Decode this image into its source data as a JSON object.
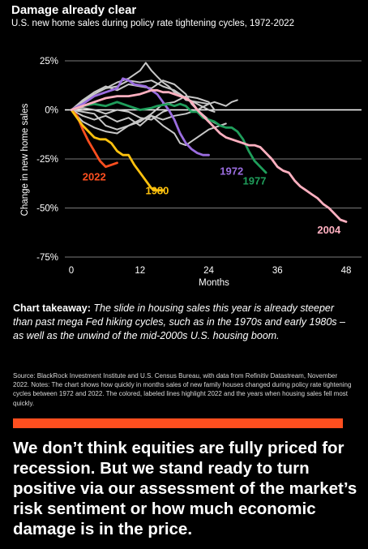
{
  "header": {
    "title": "Damage already clear",
    "subtitle": "U.S. new home sales during policy rate tightening cycles, 1972-2022"
  },
  "chart_data": {
    "type": "line",
    "title": "",
    "xlabel": "Months",
    "ylabel": "Change in new home sales",
    "xlim": [
      -2,
      50
    ],
    "ylim": [
      -75,
      30
    ],
    "x_ticks": [
      0,
      12,
      24,
      36,
      48
    ],
    "y_ticks": [
      25,
      0,
      -25,
      -50,
      -75
    ],
    "y_tick_labels": [
      "25%",
      "0%",
      "-25%",
      "-50%",
      "-75%"
    ],
    "grid": "horizontal",
    "highlighted_series": [
      {
        "name": "2022",
        "color": "#ff4f1f",
        "label_at": [
          4,
          -36
        ],
        "points": [
          [
            0,
            0
          ],
          [
            1,
            -3
          ],
          [
            2,
            -10
          ],
          [
            3,
            -16
          ],
          [
            4,
            -21
          ],
          [
            5,
            -26
          ],
          [
            6,
            -29
          ],
          [
            7,
            -28
          ],
          [
            8,
            -27
          ]
        ]
      },
      {
        "name": "1980",
        "color": "#ffc20e",
        "label_at": [
          15,
          -43
        ],
        "points": [
          [
            0,
            0
          ],
          [
            2,
            -8
          ],
          [
            3,
            -11
          ],
          [
            4,
            -14
          ],
          [
            5,
            -15
          ],
          [
            6,
            -15
          ],
          [
            7,
            -17
          ],
          [
            8,
            -21
          ],
          [
            9,
            -23
          ],
          [
            10,
            -23
          ],
          [
            11,
            -28
          ],
          [
            12,
            -32
          ],
          [
            13,
            -36
          ],
          [
            14,
            -40
          ],
          [
            15,
            -41
          ],
          [
            16,
            -41
          ]
        ]
      },
      {
        "name": "1972",
        "color": "#9b6de0",
        "label_at": [
          28,
          -33
        ],
        "points": [
          [
            0,
            0
          ],
          [
            2,
            3
          ],
          [
            4,
            7
          ],
          [
            6,
            9
          ],
          [
            8,
            11
          ],
          [
            9,
            16
          ],
          [
            10,
            15
          ],
          [
            11,
            13
          ],
          [
            13,
            12
          ],
          [
            15,
            8
          ],
          [
            16,
            4
          ],
          [
            17,
            0
          ],
          [
            18,
            -5
          ],
          [
            19,
            -12
          ],
          [
            20,
            -17
          ],
          [
            21,
            -20
          ],
          [
            22,
            -22
          ],
          [
            23,
            -23
          ],
          [
            24,
            -23
          ]
        ]
      },
      {
        "name": "1977",
        "color": "#1f9e5b",
        "label_at": [
          32,
          -38
        ],
        "points": [
          [
            0,
            0
          ],
          [
            2,
            2
          ],
          [
            4,
            3
          ],
          [
            6,
            2
          ],
          [
            8,
            4
          ],
          [
            10,
            2
          ],
          [
            12,
            0
          ],
          [
            14,
            1
          ],
          [
            15,
            2
          ],
          [
            17,
            3
          ],
          [
            18,
            2
          ],
          [
            19,
            3
          ],
          [
            20,
            2
          ],
          [
            21,
            -1
          ],
          [
            22,
            -1
          ],
          [
            23,
            -4
          ],
          [
            24,
            -5
          ],
          [
            25,
            -6
          ],
          [
            26,
            -8
          ],
          [
            27,
            -9
          ],
          [
            28,
            -9
          ],
          [
            29,
            -11
          ],
          [
            30,
            -15
          ],
          [
            31,
            -21
          ],
          [
            32,
            -26
          ],
          [
            33,
            -29
          ],
          [
            34,
            -32
          ]
        ]
      },
      {
        "name": "2004",
        "color": "#ffb0c0",
        "label_at": [
          45,
          -63
        ],
        "points": [
          [
            0,
            0
          ],
          [
            2,
            2
          ],
          [
            4,
            4
          ],
          [
            6,
            6
          ],
          [
            8,
            7
          ],
          [
            10,
            7
          ],
          [
            12,
            8
          ],
          [
            14,
            10
          ],
          [
            15,
            10
          ],
          [
            16,
            9
          ],
          [
            17,
            9
          ],
          [
            18,
            8
          ],
          [
            19,
            7
          ],
          [
            20,
            6
          ],
          [
            21,
            4
          ],
          [
            22,
            0
          ],
          [
            23,
            -3
          ],
          [
            24,
            -6
          ],
          [
            25,
            -9
          ],
          [
            26,
            -12
          ],
          [
            27,
            -14
          ],
          [
            28,
            -15
          ],
          [
            29,
            -16
          ],
          [
            30,
            -17
          ],
          [
            31,
            -18
          ],
          [
            32,
            -18
          ],
          [
            33,
            -19
          ],
          [
            34,
            -22
          ],
          [
            35,
            -25
          ],
          [
            36,
            -29
          ],
          [
            37,
            -31
          ],
          [
            38,
            -32
          ],
          [
            39,
            -36
          ],
          [
            40,
            -39
          ],
          [
            41,
            -41
          ],
          [
            42,
            -43
          ],
          [
            43,
            -45
          ],
          [
            44,
            -48
          ],
          [
            45,
            -50
          ],
          [
            46,
            -53
          ],
          [
            47,
            -56
          ],
          [
            48,
            -57
          ]
        ]
      }
    ],
    "other_series": [
      {
        "color": "#c8c8c8",
        "points": [
          [
            0,
            0
          ],
          [
            2,
            4
          ],
          [
            4,
            8
          ],
          [
            6,
            11
          ],
          [
            8,
            14
          ],
          [
            10,
            16
          ],
          [
            12,
            20
          ],
          [
            13,
            24
          ],
          [
            14,
            20
          ],
          [
            15,
            17
          ],
          [
            16,
            14
          ],
          [
            17,
            12
          ],
          [
            18,
            9
          ],
          [
            19,
            8
          ],
          [
            20,
            5
          ],
          [
            22,
            4
          ],
          [
            24,
            3
          ]
        ]
      },
      {
        "color": "#c8c8c8",
        "points": [
          [
            0,
            0
          ],
          [
            2,
            4
          ],
          [
            4,
            9
          ],
          [
            6,
            12
          ],
          [
            8,
            10
          ],
          [
            10,
            13
          ],
          [
            12,
            12
          ],
          [
            14,
            11
          ],
          [
            16,
            15
          ],
          [
            18,
            13
          ],
          [
            20,
            8
          ],
          [
            21,
            3
          ],
          [
            22,
            0
          ],
          [
            24,
            -5
          ],
          [
            26,
            -8
          ],
          [
            27,
            -7
          ]
        ]
      },
      {
        "color": "#c8c8c8",
        "points": [
          [
            0,
            0
          ],
          [
            2,
            -3
          ],
          [
            4,
            -5
          ],
          [
            6,
            -3
          ],
          [
            8,
            -6
          ],
          [
            10,
            -4
          ],
          [
            12,
            -8
          ],
          [
            14,
            -3
          ],
          [
            16,
            -5
          ],
          [
            18,
            -3
          ],
          [
            20,
            -2
          ],
          [
            22,
            0
          ],
          [
            24,
            3
          ],
          [
            25,
            4
          ],
          [
            26,
            3
          ],
          [
            27,
            2
          ],
          [
            28,
            4
          ],
          [
            29,
            5
          ]
        ]
      },
      {
        "color": "#c8c8c8",
        "points": [
          [
            0,
            0
          ],
          [
            2,
            -6
          ],
          [
            4,
            -9
          ],
          [
            6,
            -11
          ],
          [
            8,
            -12
          ],
          [
            10,
            -8
          ],
          [
            12,
            -5
          ],
          [
            14,
            -3
          ],
          [
            16,
            -8
          ],
          [
            18,
            -12
          ],
          [
            19,
            -17
          ],
          [
            20,
            -18
          ],
          [
            22,
            -14
          ],
          [
            24,
            -10
          ],
          [
            26,
            -8
          ],
          [
            27,
            -7
          ]
        ]
      },
      {
        "color": "#c8c8c8",
        "points": [
          [
            0,
            0
          ],
          [
            2,
            -1
          ],
          [
            4,
            -2
          ],
          [
            6,
            -8
          ],
          [
            8,
            -10
          ],
          [
            10,
            -8
          ],
          [
            12,
            -6
          ],
          [
            14,
            -2
          ],
          [
            16,
            3
          ],
          [
            18,
            4
          ],
          [
            20,
            7
          ],
          [
            22,
            6
          ],
          [
            24,
            4
          ],
          [
            25,
            0
          ]
        ]
      },
      {
        "color": "#c8c8c8",
        "points": [
          [
            0,
            0
          ],
          [
            2,
            5
          ],
          [
            4,
            9
          ],
          [
            6,
            11
          ],
          [
            8,
            12
          ],
          [
            10,
            15
          ],
          [
            12,
            14
          ],
          [
            14,
            15
          ],
          [
            16,
            12
          ],
          [
            18,
            10
          ],
          [
            20,
            6
          ],
          [
            22,
            3
          ],
          [
            24,
            0
          ],
          [
            25,
            -1
          ]
        ]
      },
      {
        "color": "#c8c8c8",
        "points": [
          [
            0,
            0
          ],
          [
            2,
            1
          ],
          [
            4,
            0
          ],
          [
            6,
            -2
          ],
          [
            8,
            0
          ],
          [
            10,
            -1
          ],
          [
            12,
            -4
          ],
          [
            14,
            -5
          ],
          [
            16,
            -1
          ],
          [
            17,
            0
          ]
        ]
      }
    ]
  },
  "takeaway": {
    "lead": "Chart takeaway:",
    "body": "The slide in housing sales this year is already steeper than past mega Fed hiking cycles, such as in the 1970s and early 1980s – as well as the unwind of the mid-2000s U.S. housing boom."
  },
  "source_note": "Source: BlackRock Investment Institute and U.S. Census Bureau, with data from Refinitiv Datastream, November 2022. Notes: The chart shows how quickly in months sales of new family houses changed during policy rate tightening cycles between 1972 and 2022. The colored, labeled lines highlight 2022 and the years when housing sales fell most quickly.",
  "headline": "We don’t think equities are fully priced for recession. But we stand ready to turn positive via our assessment of the market’s risk sentiment or how much economic damage is in the price.",
  "colors": {
    "background": "#000000",
    "accent_bar": "#ff4f1f"
  }
}
